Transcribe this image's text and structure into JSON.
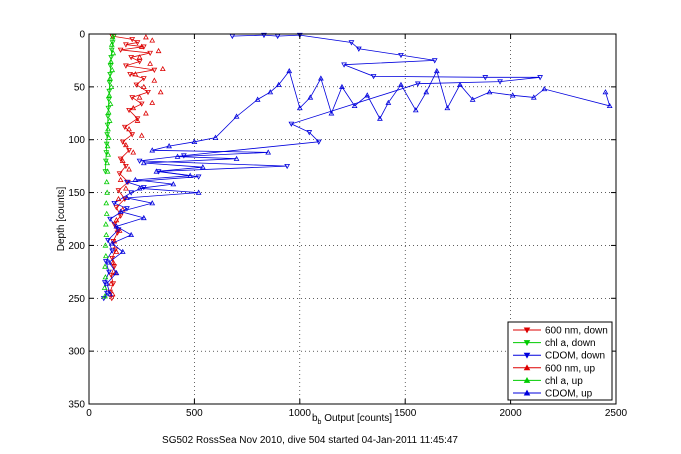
{
  "chart_data": {
    "type": "scatter",
    "title": "",
    "caption": "SG502 RossSea Nov 2010, dive 504 started 04-Jan-2011 11:45:47",
    "xlabel": "b",
    "xlabel_sub": "b",
    "xlabel_rest": " Output [counts]",
    "ylabel": "Depth [counts]",
    "xlim": [
      0,
      2500
    ],
    "ylim": [
      0,
      350
    ],
    "y_reversed": true,
    "grid": true,
    "legend_position": "bottom-right",
    "x_ticks": [
      0,
      500,
      1000,
      1500,
      2000,
      2500
    ],
    "y_ticks": [
      0,
      50,
      100,
      150,
      200,
      250,
      300,
      350
    ],
    "series": [
      {
        "name": "600 nm, down",
        "color": "#dd0000",
        "marker": "triangle-down",
        "connected": true,
        "points": [
          [
            110,
            2
          ],
          [
            205,
            5
          ],
          [
            230,
            8
          ],
          [
            175,
            10
          ],
          [
            260,
            12
          ],
          [
            150,
            15
          ],
          [
            290,
            18
          ],
          [
            200,
            22
          ],
          [
            240,
            26
          ],
          [
            175,
            30
          ],
          [
            310,
            34
          ],
          [
            195,
            38
          ],
          [
            260,
            42
          ],
          [
            225,
            48
          ],
          [
            280,
            55
          ],
          [
            205,
            60
          ],
          [
            250,
            66
          ],
          [
            190,
            72
          ],
          [
            230,
            80
          ],
          [
            170,
            88
          ],
          [
            205,
            95
          ],
          [
            160,
            102
          ],
          [
            190,
            110
          ],
          [
            150,
            118
          ],
          [
            175,
            125
          ],
          [
            145,
            132
          ],
          [
            185,
            140
          ],
          [
            140,
            148
          ],
          [
            170,
            156
          ],
          [
            130,
            164
          ],
          [
            150,
            172
          ],
          [
            120,
            180
          ],
          [
            135,
            188
          ],
          [
            115,
            196
          ],
          [
            125,
            204
          ],
          [
            110,
            212
          ],
          [
            120,
            220
          ],
          [
            105,
            228
          ],
          [
            115,
            236
          ],
          [
            100,
            244
          ],
          [
            108,
            250
          ]
        ]
      },
      {
        "name": "chl a, down",
        "color": "#00cc00",
        "marker": "triangle-down",
        "connected": true,
        "points": [
          [
            118,
            2
          ],
          [
            112,
            8
          ],
          [
            108,
            15
          ],
          [
            105,
            22
          ],
          [
            102,
            30
          ],
          [
            100,
            38
          ],
          [
            98,
            46
          ],
          [
            96,
            54
          ],
          [
            94,
            62
          ],
          [
            92,
            70
          ],
          [
            90,
            78
          ],
          [
            88,
            86
          ],
          [
            86,
            95
          ],
          [
            84,
            104
          ],
          [
            82,
            112
          ],
          [
            80,
            120
          ],
          [
            78,
            130
          ]
        ]
      },
      {
        "name": "CDOM, down",
        "color": "#0000dd",
        "marker": "triangle-down",
        "connected": true,
        "points": [
          [
            680,
            2
          ],
          [
            830,
            1
          ],
          [
            895,
            2
          ],
          [
            1000,
            1
          ],
          [
            1245,
            8
          ],
          [
            1280,
            14
          ],
          [
            1480,
            20
          ],
          [
            1640,
            25
          ],
          [
            1210,
            29
          ],
          [
            1350,
            40
          ],
          [
            1880,
            41
          ],
          [
            2140,
            41
          ],
          [
            1950,
            45
          ],
          [
            1560,
            47
          ],
          [
            960,
            85
          ],
          [
            1045,
            93
          ],
          [
            1090,
            102
          ],
          [
            450,
            115
          ],
          [
            240,
            120
          ],
          [
            940,
            125
          ],
          [
            330,
            130
          ],
          [
            520,
            135
          ],
          [
            180,
            140
          ],
          [
            260,
            145
          ],
          [
            200,
            150
          ],
          [
            120,
            160
          ],
          [
            180,
            165
          ],
          [
            100,
            175
          ],
          [
            140,
            185
          ],
          [
            90,
            195
          ],
          [
            110,
            205
          ],
          [
            80,
            215
          ],
          [
            95,
            225
          ],
          [
            75,
            235
          ],
          [
            85,
            245
          ],
          [
            70,
            250
          ]
        ]
      },
      {
        "name": "600 nm, up",
        "color": "#dd0000",
        "marker": "triangle-up",
        "connected": false,
        "points": [
          [
            270,
            3
          ],
          [
            300,
            6
          ],
          [
            250,
            12
          ],
          [
            330,
            16
          ],
          [
            240,
            22
          ],
          [
            290,
            28
          ],
          [
            350,
            33
          ],
          [
            220,
            38
          ],
          [
            310,
            44
          ],
          [
            260,
            50
          ],
          [
            340,
            55
          ],
          [
            240,
            60
          ],
          [
            300,
            65
          ],
          [
            210,
            70
          ],
          [
            270,
            75
          ],
          [
            230,
            82
          ],
          [
            190,
            90
          ],
          [
            250,
            96
          ],
          [
            175,
            105
          ],
          [
            210,
            112
          ],
          [
            160,
            120
          ],
          [
            190,
            128
          ],
          [
            150,
            138
          ],
          [
            175,
            146
          ],
          [
            140,
            156
          ],
          [
            160,
            166
          ],
          [
            130,
            176
          ],
          [
            145,
            186
          ],
          [
            120,
            196
          ],
          [
            130,
            206
          ],
          [
            115,
            216
          ],
          [
            125,
            226
          ],
          [
            105,
            236
          ],
          [
            112,
            246
          ]
        ]
      },
      {
        "name": "chl a, up",
        "color": "#00cc00",
        "marker": "triangle-up",
        "connected": false,
        "points": [
          [
            112,
            3
          ],
          [
            108,
            10
          ],
          [
            115,
            18
          ],
          [
            104,
            26
          ],
          [
            110,
            34
          ],
          [
            100,
            42
          ],
          [
            106,
            50
          ],
          [
            96,
            58
          ],
          [
            102,
            66
          ],
          [
            93,
            74
          ],
          [
            98,
            82
          ],
          [
            90,
            90
          ],
          [
            94,
            98
          ],
          [
            88,
            106
          ],
          [
            91,
            114
          ],
          [
            86,
            122
          ],
          [
            88,
            130
          ],
          [
            84,
            140
          ],
          [
            86,
            150
          ],
          [
            82,
            160
          ],
          [
            84,
            170
          ],
          [
            80,
            180
          ],
          [
            82,
            190
          ],
          [
            78,
            200
          ],
          [
            80,
            210
          ],
          [
            76,
            220
          ],
          [
            78,
            230
          ],
          [
            74,
            240
          ],
          [
            76,
            248
          ]
        ]
      },
      {
        "name": "CDOM, up",
        "color": "#0000dd",
        "marker": "triangle-up",
        "connected": true,
        "points": [
          [
            2450,
            55
          ],
          [
            2470,
            68
          ],
          [
            2160,
            52
          ],
          [
            2110,
            60
          ],
          [
            2010,
            58
          ],
          [
            1900,
            55
          ],
          [
            1820,
            62
          ],
          [
            1760,
            48
          ],
          [
            1700,
            70
          ],
          [
            1650,
            35
          ],
          [
            1600,
            55
          ],
          [
            1550,
            72
          ],
          [
            1480,
            48
          ],
          [
            1420,
            65
          ],
          [
            1380,
            80
          ],
          [
            1320,
            58
          ],
          [
            1260,
            68
          ],
          [
            1200,
            50
          ],
          [
            1150,
            75
          ],
          [
            1100,
            42
          ],
          [
            1050,
            60
          ],
          [
            1000,
            70
          ],
          [
            950,
            35
          ],
          [
            900,
            48
          ],
          [
            860,
            55
          ],
          [
            800,
            62
          ],
          [
            700,
            78
          ],
          [
            600,
            98
          ],
          [
            500,
            102
          ],
          [
            380,
            106
          ],
          [
            300,
            110
          ],
          [
            850,
            112
          ],
          [
            420,
            116
          ],
          [
            700,
            118
          ],
          [
            260,
            122
          ],
          [
            540,
            126
          ],
          [
            320,
            130
          ],
          [
            480,
            134
          ],
          [
            220,
            138
          ],
          [
            400,
            142
          ],
          [
            240,
            146
          ],
          [
            520,
            150
          ],
          [
            180,
            155
          ],
          [
            300,
            160
          ],
          [
            150,
            168
          ],
          [
            260,
            174
          ],
          [
            130,
            182
          ],
          [
            200,
            190
          ],
          [
            110,
            198
          ],
          [
            160,
            206
          ],
          [
            95,
            216
          ],
          [
            130,
            226
          ],
          [
            85,
            236
          ],
          [
            100,
            246
          ]
        ]
      }
    ]
  }
}
